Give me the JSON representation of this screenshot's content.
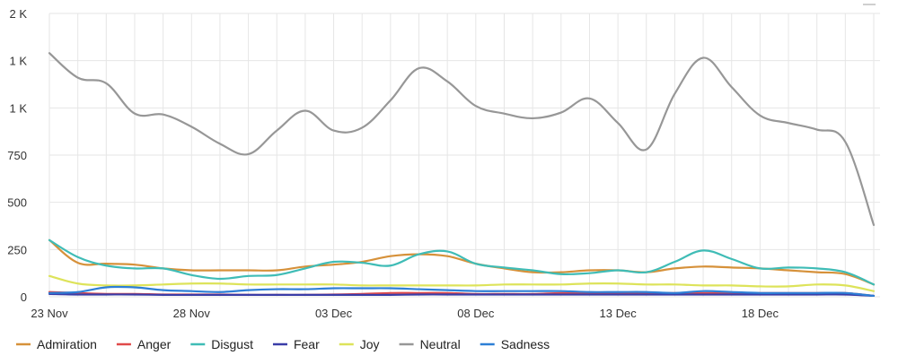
{
  "chart_data": {
    "type": "line",
    "x_dates": [
      "23 Nov",
      "24 Nov",
      "25 Nov",
      "26 Nov",
      "27 Nov",
      "28 Nov",
      "29 Nov",
      "30 Nov",
      "01 Dec",
      "02 Dec",
      "03 Dec",
      "04 Dec",
      "05 Dec",
      "06 Dec",
      "07 Dec",
      "08 Dec",
      "09 Dec",
      "10 Dec",
      "11 Dec",
      "12 Dec",
      "13 Dec",
      "14 Dec",
      "15 Dec",
      "16 Dec",
      "17 Dec",
      "18 Dec",
      "19 Dec",
      "20 Dec",
      "21 Dec",
      "22 Dec"
    ],
    "x_tick_labels": [
      "23 Nov",
      "28 Nov",
      "03 Dec",
      "08 Dec",
      "13 Dec",
      "18 Dec"
    ],
    "y_tick_labels": [
      "0",
      "250",
      "500",
      "750",
      "1 K",
      "1 K",
      "2 K"
    ],
    "y_tick_values": [
      0,
      250,
      500,
      750,
      1000,
      1250,
      1500
    ],
    "ylim": [
      0,
      1500
    ],
    "grid": true,
    "legend_position": "bottom-left",
    "series": [
      {
        "name": "Admiration",
        "color": "#d6913a",
        "values": [
          300,
          180,
          175,
          170,
          150,
          140,
          140,
          140,
          140,
          160,
          170,
          185,
          215,
          225,
          215,
          175,
          150,
          130,
          130,
          140,
          140,
          130,
          150,
          160,
          155,
          150,
          140,
          130,
          120,
          65
        ]
      },
      {
        "name": "Anger",
        "color": "#e04a4a",
        "values": [
          25,
          20,
          15,
          15,
          12,
          12,
          12,
          10,
          10,
          10,
          12,
          15,
          20,
          20,
          20,
          15,
          15,
          15,
          20,
          20,
          20,
          20,
          20,
          20,
          20,
          20,
          20,
          20,
          20,
          5
        ]
      },
      {
        "name": "Disgust",
        "color": "#3fbcb6",
        "values": [
          300,
          210,
          165,
          150,
          150,
          115,
          95,
          110,
          115,
          150,
          185,
          180,
          165,
          225,
          240,
          175,
          155,
          140,
          120,
          125,
          140,
          130,
          185,
          245,
          200,
          150,
          155,
          150,
          130,
          65
        ]
      },
      {
        "name": "Fear",
        "color": "#3a3da8",
        "values": [
          15,
          12,
          12,
          12,
          10,
          10,
          10,
          10,
          10,
          10,
          10,
          10,
          10,
          12,
          12,
          12,
          12,
          12,
          12,
          12,
          12,
          12,
          12,
          12,
          12,
          12,
          12,
          12,
          12,
          5
        ]
      },
      {
        "name": "Joy",
        "color": "#dde35a",
        "values": [
          110,
          70,
          60,
          60,
          65,
          70,
          70,
          65,
          65,
          65,
          65,
          60,
          60,
          60,
          60,
          60,
          65,
          65,
          65,
          70,
          70,
          65,
          65,
          60,
          60,
          55,
          55,
          65,
          60,
          30
        ]
      },
      {
        "name": "Neutral",
        "color": "#979797",
        "values": [
          1290,
          1160,
          1130,
          970,
          965,
          900,
          810,
          755,
          880,
          985,
          880,
          895,
          1040,
          1210,
          1140,
          1010,
          970,
          945,
          975,
          1050,
          920,
          780,
          1075,
          1265,
          1110,
          960,
          920,
          885,
          820,
          380
        ]
      },
      {
        "name": "Sadness",
        "color": "#2d7fd6",
        "values": [
          20,
          25,
          50,
          50,
          35,
          30,
          25,
          35,
          40,
          40,
          45,
          45,
          45,
          40,
          35,
          30,
          30,
          30,
          30,
          25,
          25,
          25,
          20,
          30,
          25,
          20,
          20,
          20,
          20,
          5
        ]
      }
    ]
  },
  "ui": {
    "menu_icon": "hamburger-menu-icon"
  }
}
